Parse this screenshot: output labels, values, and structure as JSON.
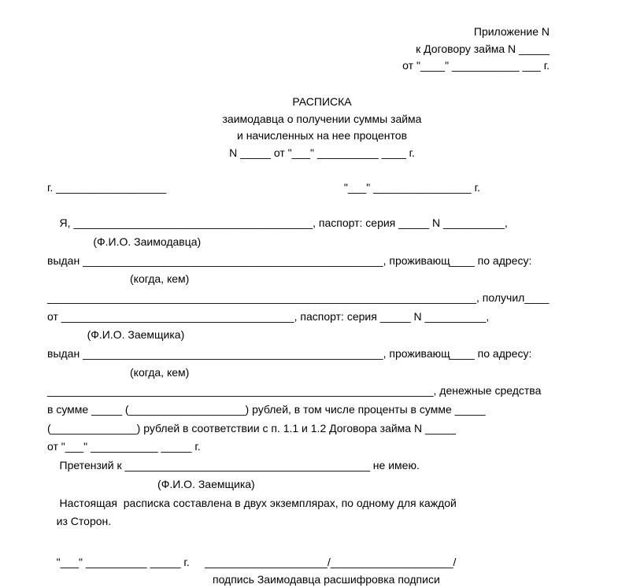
{
  "colors": {
    "bg": "#ffffff",
    "text": "#000000"
  },
  "font": {
    "family": "Arial, Helvetica, sans-serif",
    "size_pt": 11
  },
  "header": {
    "l1": "Приложение N",
    "l2": "к Договору займа N _____",
    "l3": "от \"____\" ___________ ___ г."
  },
  "title": {
    "main": "РАСПИСКА",
    "sub1": "заимодавца о получении суммы займа",
    "sub2": "и начисленных на нее процентов",
    "numline": "N _____ от \"___\" __________ ____ г."
  },
  "body": {
    "city_date": "г. __________________                                                          \"___\" ________________ г.",
    "ya": "    Я, _______________________________________, паспорт: серия _____ N __________,",
    "hint_lender": "               (Ф.И.О. Заимодавца)",
    "issued1": "выдан _________________________________________________, проживающ____ по адресу:",
    "hint_when1": "                           (когда, кем)",
    "addr_recv": "______________________________________________________________________, получил____",
    "from": "от ______________________________________, паспорт: серия _____ N __________,",
    "hint_borrower": "             (Ф.И.О. Заемщика)",
    "issued2": "выдан _________________________________________________, проживающ____ по адресу:",
    "hint_when2": "                           (когда, кем)",
    "addr_money": "_______________________________________________________________, денежные средства",
    "sum1": "в сумме _____ (___________________) рублей, в том числе проценты в сумме _____",
    "sum2": "(______________) рублей в соответствии с п. 1.1 и 1.2 Договора займа N _____",
    "sum3": "от \"___\" ___________ _____ г.",
    "claims": "    Претензий к ________________________________________ не имею.",
    "hint_borrower2": "                                    (Ф.И.О. Заемщика)",
    "copies1": "    Настоящая  расписка составлена в двух экземплярах, по одному для каждой",
    "copies2": "   из Сторон."
  },
  "signature": {
    "line": "   \"___\" __________ _____ г.     ____________________/____________________/",
    "labels": "подпись Заимодавца     расшифровка подписи"
  }
}
